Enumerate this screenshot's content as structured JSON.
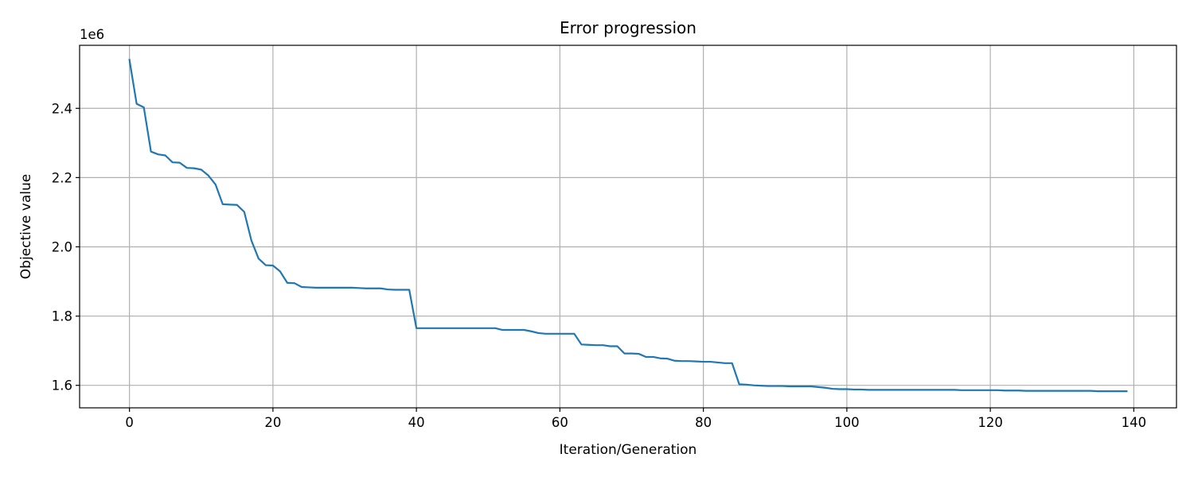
{
  "chart_data": {
    "type": "line",
    "title": "Error progression",
    "xlabel": "Iteration/Generation",
    "ylabel": "Objective value",
    "y_offset_label": "1e6",
    "y_scale_factor": 1000000,
    "xlim": [
      -6.95,
      145.95
    ],
    "ylim": [
      1535000,
      2582000
    ],
    "x_ticks": [
      0,
      20,
      40,
      60,
      80,
      100,
      120,
      140
    ],
    "x_tick_labels": [
      "0",
      "20",
      "40",
      "60",
      "80",
      "100",
      "120",
      "140"
    ],
    "y_ticks": [
      1600000,
      1800000,
      2000000,
      2200000,
      2400000
    ],
    "y_tick_labels": [
      "1.6",
      "1.8",
      "2.0",
      "2.2",
      "2.4"
    ],
    "grid": true,
    "line_color": "#1f77b4",
    "series": [
      {
        "x": [
          0,
          1,
          2,
          3,
          4,
          5,
          6,
          7,
          8,
          9,
          10,
          11,
          12,
          13,
          14,
          15,
          16,
          17,
          18,
          19,
          20,
          21,
          22,
          23,
          24,
          25,
          26,
          27,
          28,
          29,
          30,
          31,
          32,
          33,
          34,
          35,
          36,
          37,
          38,
          39,
          40,
          41,
          42,
          43,
          44,
          45,
          46,
          47,
          48,
          49,
          50,
          51,
          52,
          53,
          54,
          55,
          56,
          57,
          58,
          59,
          60,
          61,
          62,
          63,
          64,
          65,
          66,
          67,
          68,
          69,
          70,
          71,
          72,
          73,
          74,
          75,
          76,
          77,
          78,
          79,
          80,
          81,
          82,
          83,
          84,
          85,
          86,
          87,
          88,
          89,
          90,
          91,
          92,
          93,
          94,
          95,
          96,
          97,
          98,
          99,
          100,
          101,
          102,
          103,
          104,
          105,
          106,
          107,
          108,
          109,
          110,
          111,
          112,
          113,
          114,
          115,
          116,
          117,
          118,
          119,
          120,
          121,
          122,
          123,
          124,
          125,
          126,
          127,
          128,
          129,
          130,
          131,
          132,
          133,
          134,
          135,
          136,
          137,
          138,
          139
        ],
        "y": [
          2540000,
          2413000,
          2403000,
          2275000,
          2267000,
          2264000,
          2244000,
          2243000,
          2228000,
          2227000,
          2223000,
          2206000,
          2180000,
          2123000,
          2122000,
          2121000,
          2101000,
          2018000,
          1966000,
          1947000,
          1946000,
          1929000,
          1896000,
          1895000,
          1884000,
          1883000,
          1882000,
          1882000,
          1882000,
          1882000,
          1882000,
          1882000,
          1881000,
          1880000,
          1880000,
          1880000,
          1877000,
          1876000,
          1876000,
          1876000,
          1765000,
          1765000,
          1765000,
          1765000,
          1765000,
          1765000,
          1765000,
          1765000,
          1765000,
          1765000,
          1765000,
          1765000,
          1760000,
          1760000,
          1760000,
          1760000,
          1756000,
          1751000,
          1749000,
          1749000,
          1749000,
          1749000,
          1749000,
          1718000,
          1717000,
          1716000,
          1716000,
          1713000,
          1713000,
          1692000,
          1692000,
          1691000,
          1682000,
          1682000,
          1678000,
          1677000,
          1671000,
          1670000,
          1670000,
          1669000,
          1668000,
          1668000,
          1666000,
          1664000,
          1664000,
          1603000,
          1602000,
          1600000,
          1599000,
          1598000,
          1598000,
          1598000,
          1597000,
          1597000,
          1597000,
          1597000,
          1595000,
          1593000,
          1590000,
          1589000,
          1589000,
          1588000,
          1588000,
          1587000,
          1587000,
          1587000,
          1587000,
          1587000,
          1587000,
          1587000,
          1587000,
          1587000,
          1587000,
          1587000,
          1587000,
          1587000,
          1586000,
          1586000,
          1586000,
          1586000,
          1586000,
          1586000,
          1585000,
          1585000,
          1585000,
          1584000,
          1584000,
          1584000,
          1584000,
          1584000,
          1584000,
          1584000,
          1584000,
          1584000,
          1584000,
          1583000,
          1583000,
          1583000,
          1583000,
          1583000
        ]
      }
    ]
  }
}
